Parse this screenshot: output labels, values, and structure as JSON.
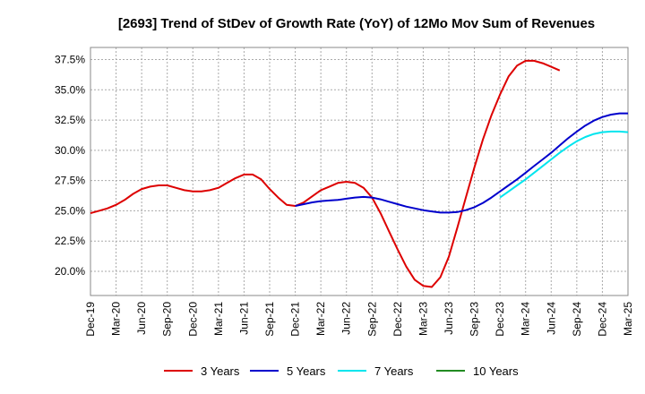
{
  "chart_data": {
    "type": "line",
    "title": "[2693]  Trend of StDev of Growth Rate (YoY) of 12Mo Mov Sum of Revenues",
    "xlabel": "",
    "ylabel": "",
    "x_labels": [
      "Dec-19",
      "Mar-20",
      "Jun-20",
      "Sep-20",
      "Dec-20",
      "Mar-21",
      "Jun-21",
      "Sep-21",
      "Dec-21",
      "Mar-22",
      "Jun-22",
      "Sep-22",
      "Dec-22",
      "Mar-23",
      "Jun-23",
      "Sep-23",
      "Dec-23",
      "Mar-24",
      "Jun-24",
      "Sep-24",
      "Dec-24",
      "Mar-25"
    ],
    "y_ticks": [
      20.0,
      22.5,
      25.0,
      27.5,
      30.0,
      32.5,
      35.0,
      37.5
    ],
    "y_tick_labels": [
      "20.0%",
      "22.5%",
      "25.0%",
      "27.5%",
      "30.0%",
      "32.5%",
      "35.0%",
      "37.5%"
    ],
    "ylim": [
      18.0,
      38.5
    ],
    "series": [
      {
        "name": "3 Years",
        "color": "#dd0000",
        "start_index": 0,
        "values": [
          24.8,
          25.0,
          25.2,
          25.5,
          25.9,
          26.4,
          26.8,
          27.0,
          27.1,
          27.1,
          26.9,
          26.7,
          26.6,
          26.6,
          26.7,
          26.9,
          27.3,
          27.7,
          28.0,
          28.0,
          27.6,
          26.8,
          26.1,
          25.5,
          25.4,
          25.7,
          26.2,
          26.7,
          27.0,
          27.3,
          27.4,
          27.3,
          26.9,
          26.1,
          24.8,
          23.3,
          21.8,
          20.4,
          19.3,
          18.8,
          18.7,
          19.5,
          21.2,
          23.6,
          26.1,
          28.6,
          30.9,
          32.9,
          34.6,
          36.1,
          37.0,
          37.4,
          37.4,
          37.2,
          36.9,
          36.6
        ]
      },
      {
        "name": "5 Years",
        "color": "#0000cc",
        "start_index": 24,
        "values": [
          25.4,
          25.55,
          25.7,
          25.8,
          25.85,
          25.9,
          26.0,
          26.1,
          26.15,
          26.1,
          25.95,
          25.75,
          25.55,
          25.35,
          25.2,
          25.05,
          24.95,
          24.85,
          24.85,
          24.9,
          25.05,
          25.3,
          25.65,
          26.1,
          26.6,
          27.1,
          27.6,
          28.15,
          28.7,
          29.25,
          29.8,
          30.4,
          31.0,
          31.55,
          32.05,
          32.45,
          32.75,
          32.95,
          33.05,
          33.05
        ]
      },
      {
        "name": "7 Years",
        "color": "#00e5ee",
        "start_index": 48,
        "values": [
          26.1,
          26.6,
          27.1,
          27.6,
          28.15,
          28.7,
          29.25,
          29.8,
          30.3,
          30.75,
          31.1,
          31.35,
          31.5,
          31.55,
          31.55,
          31.5
        ]
      },
      {
        "name": "10 Years",
        "color": "#228b22",
        "start_index": 0,
        "values": []
      }
    ]
  }
}
